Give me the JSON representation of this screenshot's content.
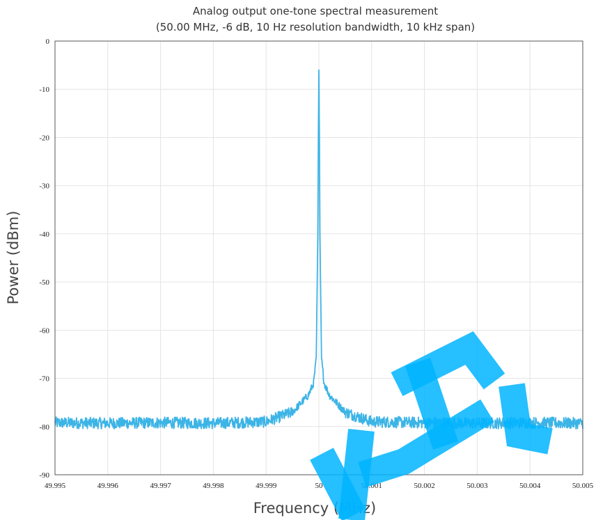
{
  "chart_data": {
    "type": "line",
    "title": "Analog output one-tone spectral measurement",
    "subtitle": "(50.00 MHz, -6 dB, 10 Hz resolution bandwidth, 10 kHz span)",
    "xlabel": "Frequency (MHz)",
    "ylabel": "Power (dBm)",
    "xlim": [
      49.995,
      50.005
    ],
    "ylim": [
      -90,
      0
    ],
    "x_ticks": [
      "49.995",
      "49.996",
      "49.997",
      "49.998",
      "49.999",
      "50",
      "50.001",
      "50.002",
      "50.003",
      "50.004",
      "50.005"
    ],
    "y_ticks": [
      "0",
      "-10",
      "-20",
      "-30",
      "-40",
      "-50",
      "-60",
      "-70",
      "-80",
      "-90"
    ],
    "grid": true,
    "series": [
      {
        "color": "#3cb4e6",
        "x": [
          49.995,
          49.996,
          49.997,
          49.998,
          49.999,
          49.9995,
          49.9998,
          49.9999,
          49.99995,
          49.99998,
          49.99999,
          50.0,
          50.00001,
          50.00002,
          50.00005,
          50.0001,
          50.0002,
          50.0005,
          50.001,
          50.002,
          50.003,
          50.004,
          50.005
        ],
        "y": [
          -79.2,
          -79.3,
          -79.2,
          -79.3,
          -79.0,
          -77.0,
          -73.5,
          -71.0,
          -66.0,
          -40.0,
          -20.0,
          -6.0,
          -20.0,
          -40.0,
          -66.0,
          -71.0,
          -73.5,
          -77.0,
          -79.0,
          -79.2,
          -79.3,
          -79.2,
          -79.3
        ],
        "noise_floor_dbm": -79.2
      }
    ]
  },
  "watermark": {
    "color": "#00b4ff"
  }
}
